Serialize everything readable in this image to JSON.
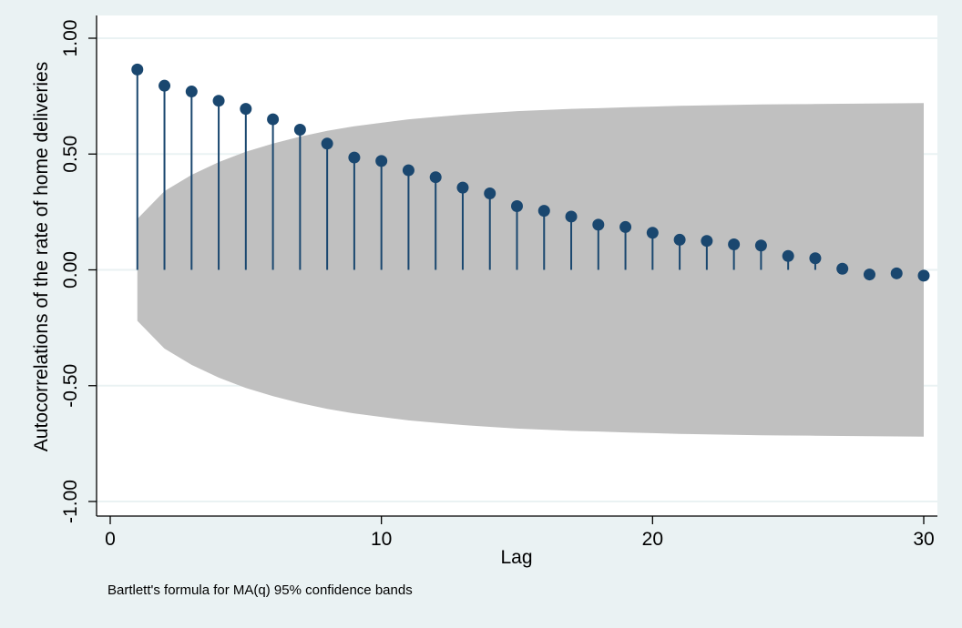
{
  "chart_data": {
    "type": "stem",
    "xlabel": "Lag",
    "ylabel": "Autocorrelations of the rate of home deliveries",
    "note": "Bartlett's formula for MA(q) 95% confidence bands",
    "xlim": [
      0,
      30
    ],
    "ylim": [
      -1,
      1
    ],
    "x_ticks": [
      0,
      10,
      20,
      30
    ],
    "x_tick_labels": [
      "0",
      "10",
      "20",
      "30"
    ],
    "y_ticks": [
      -1,
      -0.5,
      0,
      0.5,
      1
    ],
    "y_tick_labels": [
      "-1.00",
      "-0.50",
      "0.00",
      "0.50",
      "1.00"
    ],
    "grid": "horizontal",
    "x": [
      1,
      2,
      3,
      4,
      5,
      6,
      7,
      8,
      9,
      10,
      11,
      12,
      13,
      14,
      15,
      16,
      17,
      18,
      19,
      20,
      21,
      22,
      23,
      24,
      25,
      26,
      27,
      28,
      29,
      30
    ],
    "values": [
      0.865,
      0.795,
      0.77,
      0.73,
      0.695,
      0.65,
      0.605,
      0.545,
      0.485,
      0.47,
      0.43,
      0.4,
      0.355,
      0.33,
      0.275,
      0.255,
      0.23,
      0.195,
      0.185,
      0.16,
      0.13,
      0.125,
      0.11,
      0.105,
      0.06,
      0.05,
      0.005,
      -0.02,
      -0.015,
      -0.025
    ],
    "confidence_band_upper": [
      0.22,
      0.34,
      0.41,
      0.465,
      0.51,
      0.545,
      0.575,
      0.6,
      0.62,
      0.635,
      0.65,
      0.66,
      0.67,
      0.678,
      0.685,
      0.69,
      0.695,
      0.698,
      0.702,
      0.705,
      0.708,
      0.71,
      0.712,
      0.714,
      0.715,
      0.716,
      0.717,
      0.718,
      0.719,
      0.72
    ],
    "colors": {
      "background": "#eaf2f3",
      "plot_area": "#ffffff",
      "band": "#c0c0c0",
      "marker": "#1a476f",
      "stem": "#1a476f",
      "gridline": "#eaf2f3",
      "axis": "#000000"
    }
  }
}
